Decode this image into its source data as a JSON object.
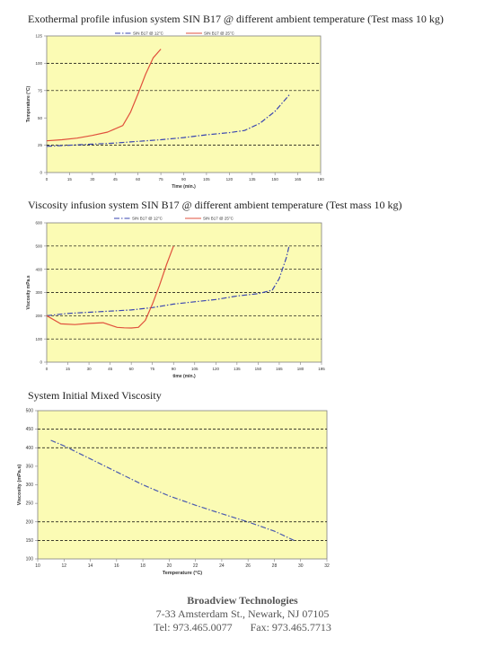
{
  "charts": [
    {
      "title": "Exothermal profile infusion system SIN B17 @ different ambient temperature (Test mass 10 kg)"
    },
    {
      "title": "Viscosity infusion system SIN B17 @ different ambient temperature (Test mass 10 kg)"
    },
    {
      "title": "System Initial Mixed Viscosity"
    }
  ],
  "colors": {
    "plot_bg": "#fbfbb4",
    "series_12c": "#3a46b0",
    "series_25c": "#e0503c",
    "series_viscosity": "#4a5ab0",
    "grid": "#000000",
    "axis": "#808080"
  },
  "chart_data": [
    {
      "type": "line",
      "title": "Exothermal profile infusion system SIN B17 @ different ambient temperature (Test mass 10 kg)",
      "xlabel": "Time (min.)",
      "ylabel": "Temperature (°C)",
      "xlim": [
        0,
        180
      ],
      "ylim": [
        0,
        125
      ],
      "xticks": [
        "0",
        "15",
        "30",
        "45",
        "60",
        "75",
        "90",
        "105",
        "120",
        "135",
        "150",
        "165",
        "180"
      ],
      "yticks": [
        "0",
        "25",
        "50",
        "75",
        "100",
        "125"
      ],
      "grid_y": [
        25,
        75,
        100
      ],
      "legend": "top",
      "series": [
        {
          "name": "SIN B17 @ 12°C",
          "style": "dash-dot",
          "color": "#3a46b0",
          "x": [
            0,
            15,
            30,
            45,
            60,
            75,
            90,
            105,
            120,
            130,
            140,
            150,
            160
          ],
          "y": [
            24,
            25,
            26,
            27,
            28.5,
            30,
            32,
            34.5,
            36.5,
            38.5,
            45,
            56,
            72
          ]
        },
        {
          "name": "SIN B17 @ 25°C",
          "style": "solid",
          "color": "#e0503c",
          "x": [
            0,
            10,
            20,
            30,
            40,
            50,
            55,
            60,
            65,
            70,
            75
          ],
          "y": [
            29,
            30,
            31.5,
            34,
            37,
            43,
            55,
            72,
            90,
            105,
            113
          ]
        }
      ]
    },
    {
      "type": "line",
      "title": "Viscosity infusion system SIN B17 @ different ambient temperature (Test mass 10 kg)",
      "xlabel": "time (min.)",
      "ylabel": "Viscosity mPa.s",
      "xlim": [
        0,
        195
      ],
      "ylim": [
        0,
        600
      ],
      "xticks": [
        "0",
        "15",
        "30",
        "45",
        "60",
        "75",
        "90",
        "105",
        "120",
        "135",
        "150",
        "165",
        "180",
        "195"
      ],
      "yticks": [
        "0",
        "100",
        "200",
        "300",
        "400",
        "500",
        "600"
      ],
      "grid_y": [
        100,
        200,
        300,
        400,
        500
      ],
      "legend": "top",
      "series": [
        {
          "name": "SIN B17 @ 12°C",
          "style": "dash-dot",
          "color": "#3a46b0",
          "x": [
            0,
            15,
            30,
            45,
            60,
            75,
            90,
            105,
            120,
            135,
            150,
            160,
            165,
            170,
            172
          ],
          "y": [
            200,
            210,
            215,
            220,
            225,
            235,
            250,
            260,
            270,
            285,
            295,
            310,
            360,
            450,
            500
          ]
        },
        {
          "name": "SIN B17 @ 25°C",
          "style": "solid",
          "color": "#e0503c",
          "x": [
            0,
            10,
            20,
            30,
            40,
            45,
            50,
            55,
            60,
            65,
            70,
            75,
            80,
            85,
            90
          ],
          "y": [
            200,
            165,
            162,
            167,
            170,
            160,
            150,
            148,
            147,
            150,
            180,
            250,
            330,
            420,
            500
          ]
        }
      ]
    },
    {
      "type": "line",
      "title": "System Initial Mixed Viscosity",
      "xlabel": "Temperature (°C)",
      "ylabel": "Viscosity (mPa.s)",
      "xlim": [
        10,
        32
      ],
      "ylim": [
        100,
        500
      ],
      "xticks": [
        "10",
        "12",
        "14",
        "16",
        "18",
        "20",
        "22",
        "24",
        "26",
        "28",
        "30",
        "32"
      ],
      "yticks": [
        "100",
        "150",
        "200",
        "250",
        "300",
        "350",
        "400",
        "450",
        "500"
      ],
      "grid_y": [
        150,
        200,
        400,
        450
      ],
      "series": [
        {
          "style": "dash-dot",
          "color": "#4a5ab0",
          "x": [
            11,
            12,
            14,
            16,
            18,
            20,
            22,
            24,
            26,
            28,
            29.5
          ],
          "y": [
            420,
            405,
            370,
            335,
            300,
            270,
            245,
            222,
            200,
            175,
            150
          ]
        }
      ]
    }
  ],
  "footer": {
    "company": "Broadview Technologies",
    "address": "7-33 Amsterdam St., Newark, NJ 07105",
    "tel": "Tel: 973.465.0077",
    "fax": "Fax: 973.465.7713"
  }
}
